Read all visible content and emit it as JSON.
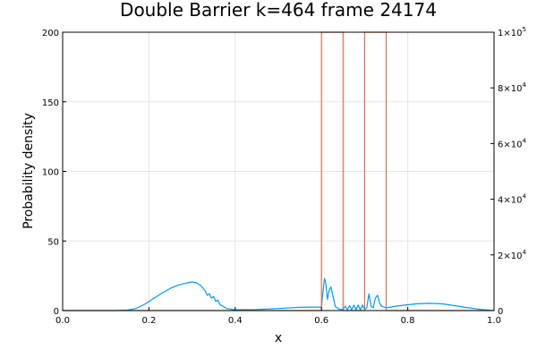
{
  "chart_data": {
    "type": "line",
    "title": "Double Barrier k=464 frame 24174",
    "xlabel": "x",
    "ylabel": "Probability density",
    "xlim": [
      0.0,
      1.0
    ],
    "ylim": [
      0,
      200
    ],
    "y2lim": [
      0,
      100000
    ],
    "grid": true,
    "x_ticks": [
      "0.0",
      "0.2",
      "0.4",
      "0.6",
      "0.8",
      "1.0"
    ],
    "y_ticks": [
      "0",
      "50",
      "100",
      "150",
      "200"
    ],
    "y2_ticks": [
      {
        "mant": "0",
        "exp": ""
      },
      {
        "mant": "2×10",
        "exp": "4"
      },
      {
        "mant": "4×10",
        "exp": "4"
      },
      {
        "mant": "6×10",
        "exp": "4"
      },
      {
        "mant": "8×10",
        "exp": "4"
      },
      {
        "mant": "1×10",
        "exp": "5"
      }
    ],
    "series": [
      {
        "color": "#009af9",
        "axis": "left",
        "x": [
          0.0,
          0.12,
          0.15,
          0.17,
          0.19,
          0.21,
          0.23,
          0.25,
          0.27,
          0.29,
          0.3,
          0.31,
          0.32,
          0.33,
          0.335,
          0.34,
          0.345,
          0.35,
          0.355,
          0.36,
          0.365,
          0.37,
          0.38,
          0.4,
          0.45,
          0.5,
          0.55,
          0.58,
          0.6,
          0.603,
          0.607,
          0.61,
          0.614,
          0.618,
          0.622,
          0.627,
          0.632,
          0.64,
          0.65,
          0.655,
          0.66,
          0.665,
          0.67,
          0.675,
          0.68,
          0.685,
          0.69,
          0.695,
          0.7,
          0.705,
          0.71,
          0.715,
          0.72,
          0.725,
          0.73,
          0.735,
          0.74,
          0.745,
          0.75,
          0.76,
          0.78,
          0.8,
          0.82,
          0.85,
          0.88,
          0.91,
          0.94,
          0.97,
          1.0
        ],
        "y": [
          0,
          0,
          0.3,
          1.5,
          4.5,
          8.5,
          12.5,
          16,
          18.5,
          20,
          20.5,
          20,
          18,
          14.5,
          11,
          12,
          9,
          10,
          6.5,
          7.5,
          4,
          3.5,
          1.5,
          0.6,
          0.8,
          1.5,
          2.3,
          2.5,
          2.5,
          12,
          23,
          20,
          8,
          15,
          17,
          10,
          3,
          1,
          0.8,
          3.2,
          0.6,
          3.6,
          0.6,
          3.9,
          0.6,
          4,
          0.6,
          4,
          0.8,
          2,
          12,
          3,
          2,
          9,
          11,
          5,
          3,
          2.5,
          2,
          2.5,
          3.5,
          4.2,
          4.8,
          5.2,
          4.8,
          3.5,
          2,
          0.8,
          0
        ]
      },
      {
        "color": "#e26f46",
        "axis": "right",
        "x": [
          0.0,
          0.6,
          0.6,
          0.65,
          0.65,
          0.7,
          0.7,
          0.75,
          0.75,
          1.0
        ],
        "y": [
          0,
          0,
          100000,
          100000,
          0,
          0,
          100000,
          100000,
          0,
          0
        ]
      }
    ]
  }
}
